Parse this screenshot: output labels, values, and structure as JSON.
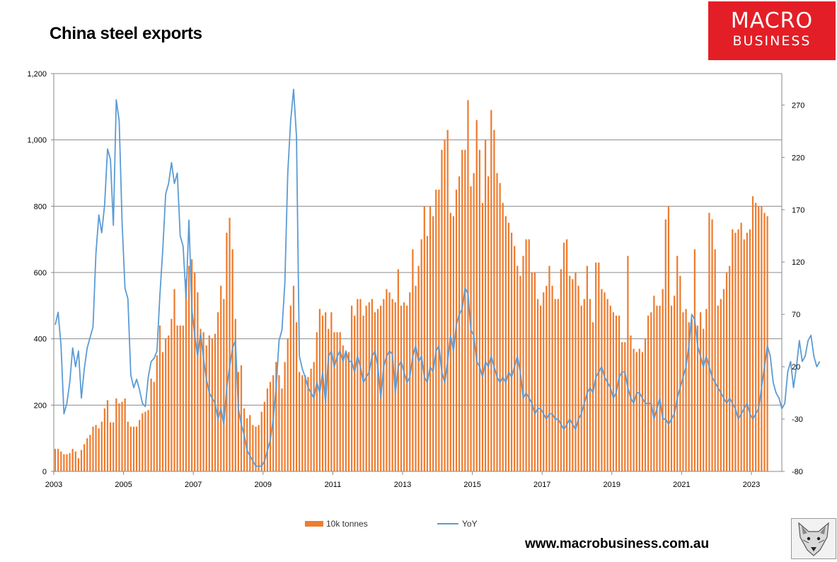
{
  "title": "China steel exports",
  "brand": {
    "line1": "MACRO",
    "line2": "BUSINESS",
    "color": "#e41e26",
    "website": "www.macrobusiness.com.au",
    "mascot_icon": "fox-icon"
  },
  "colors": {
    "bars": "#ed7d31",
    "line": "#5b9bd5",
    "grid": "#8c8c8c"
  },
  "legend": {
    "bars_label": "10k tonnes",
    "line_label": "YoY"
  },
  "chart_data": {
    "type": "bar+line",
    "title": "China steel exports",
    "x_ticks": [
      "2003",
      "2005",
      "2007",
      "2009",
      "2011",
      "2013",
      "2015",
      "2017",
      "2019",
      "2021",
      "2023"
    ],
    "y_left": {
      "ticks": [
        "0",
        "200",
        "400",
        "600",
        "800",
        "1,000",
        "1,200"
      ],
      "range": [
        0,
        1200
      ]
    },
    "y_right": {
      "ticks": [
        "-80",
        "-30",
        "20",
        "70",
        "120",
        "170",
        "220",
        "270"
      ],
      "range": [
        -80,
        300
      ]
    },
    "grid": "horizontal",
    "legend_position": "bottom",
    "x_start": "2003-01",
    "series": [
      {
        "name": "10k tonnes",
        "type": "bar",
        "axis": "left",
        "frequency": "monthly",
        "values": [
          68,
          68,
          60,
          52,
          52,
          55,
          68,
          60,
          40,
          65,
          82,
          100,
          110,
          135,
          140,
          130,
          150,
          190,
          215,
          148,
          148,
          220,
          205,
          210,
          220,
          150,
          135,
          135,
          135,
          155,
          175,
          180,
          185,
          280,
          270,
          350,
          440,
          360,
          400,
          410,
          460,
          550,
          440,
          440,
          440,
          580,
          620,
          640,
          600,
          540,
          430,
          420,
          380,
          410,
          400,
          415,
          480,
          560,
          520,
          720,
          765,
          670,
          460,
          300,
          320,
          190,
          160,
          170,
          140,
          135,
          140,
          180,
          210,
          250,
          270,
          290,
          330,
          290,
          250,
          330,
          400,
          500,
          560,
          450,
          300,
          290,
          290,
          285,
          310,
          330,
          420,
          490,
          470,
          480,
          430,
          480,
          420,
          420,
          420,
          380,
          360,
          360,
          500,
          470,
          520,
          520,
          470,
          500,
          510,
          520,
          480,
          490,
          500,
          520,
          550,
          540,
          520,
          510,
          610,
          500,
          510,
          500,
          540,
          670,
          560,
          620,
          700,
          800,
          710,
          800,
          770,
          850,
          850,
          970,
          1000,
          1030,
          780,
          770,
          850,
          890,
          970,
          970,
          1120,
          860,
          900,
          1060,
          970,
          810,
          1000,
          890,
          1090,
          1030,
          900,
          870,
          810,
          770,
          750,
          720,
          680,
          620,
          590,
          650,
          700,
          700,
          600,
          600,
          520,
          500,
          540,
          560,
          620,
          560,
          520,
          520,
          610,
          690,
          700,
          590,
          580,
          600,
          560,
          500,
          520,
          620,
          520,
          450,
          630,
          630,
          550,
          540,
          520,
          500,
          480,
          470,
          470,
          390,
          390,
          650,
          410,
          370,
          360,
          370,
          360,
          400,
          470,
          480,
          530,
          500,
          500,
          550,
          760,
          800,
          500,
          530,
          650,
          590,
          480,
          490,
          450,
          460,
          670,
          440,
          480,
          430,
          490,
          780,
          760,
          670,
          500,
          520,
          550,
          600,
          620,
          730,
          720,
          730,
          750,
          700,
          720,
          730,
          830,
          810,
          800,
          800,
          780,
          770
        ]
      },
      {
        "name": "YoY",
        "type": "line",
        "axis": "right",
        "frequency": "monthly",
        "values": [
          60,
          72,
          40,
          -25,
          -15,
          5,
          38,
          20,
          35,
          -10,
          18,
          38,
          48,
          58,
          128,
          165,
          148,
          175,
          228,
          218,
          155,
          275,
          255,
          158,
          95,
          85,
          12,
          0,
          8,
          -2,
          -15,
          -18,
          10,
          25,
          28,
          35,
          88,
          132,
          185,
          195,
          215,
          195,
          205,
          145,
          135,
          85,
          160,
          75,
          50,
          30,
          52,
          28,
          8,
          -5,
          -10,
          -15,
          -30,
          -20,
          -35,
          0,
          20,
          38,
          45,
          -20,
          -35,
          -45,
          -60,
          -65,
          -70,
          -75,
          -75,
          -75,
          -70,
          -60,
          -50,
          -30,
          0,
          45,
          55,
          100,
          205,
          255,
          285,
          240,
          30,
          18,
          10,
          0,
          -5,
          -10,
          5,
          -5,
          15,
          -15,
          30,
          35,
          20,
          30,
          35,
          25,
          35,
          25,
          25,
          15,
          30,
          20,
          5,
          10,
          15,
          30,
          35,
          20,
          -10,
          20,
          30,
          35,
          32,
          -5,
          20,
          25,
          15,
          5,
          10,
          30,
          40,
          25,
          30,
          10,
          5,
          20,
          15,
          35,
          40,
          15,
          5,
          25,
          50,
          35,
          60,
          70,
          75,
          95,
          90,
          55,
          50,
          25,
          20,
          10,
          25,
          20,
          30,
          20,
          10,
          5,
          10,
          5,
          15,
          10,
          20,
          30,
          15,
          -10,
          -5,
          -10,
          -15,
          -25,
          -20,
          -20,
          -25,
          -30,
          -25,
          -25,
          -30,
          -30,
          -35,
          -40,
          -35,
          -30,
          -35,
          -40,
          -30,
          -25,
          -15,
          -5,
          0,
          -5,
          10,
          15,
          20,
          10,
          5,
          0,
          -10,
          -5,
          10,
          15,
          15,
          0,
          -10,
          -15,
          -5,
          -5,
          -10,
          -15,
          -15,
          -15,
          -30,
          -20,
          -10,
          -30,
          -30,
          -35,
          -30,
          -25,
          -10,
          0,
          10,
          20,
          40,
          70,
          65,
          40,
          30,
          20,
          30,
          20,
          10,
          5,
          0,
          -5,
          -10,
          -15,
          -10,
          -15,
          -20,
          -30,
          -25,
          -20,
          -15,
          -25,
          -30,
          -25,
          -20,
          0,
          20,
          40,
          30,
          5,
          -5,
          -10,
          -20,
          -15,
          15,
          25,
          0,
          20,
          45,
          25,
          30,
          45,
          50,
          30,
          20,
          25
        ]
      }
    ]
  }
}
